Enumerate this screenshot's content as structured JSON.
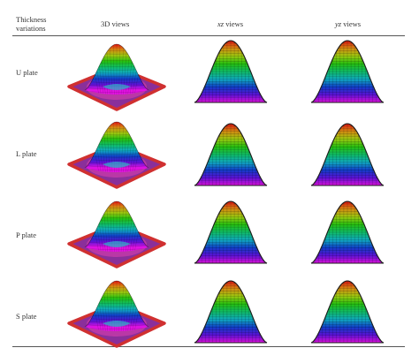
{
  "table": {
    "header": {
      "col1_line1": "Thickness",
      "col1_line2": "variations",
      "col2": "3D views",
      "col3_axis": "xz",
      "col3_word": "views",
      "col4_axis": "yz",
      "col4_word": "views"
    },
    "rows": [
      {
        "label": "U plate"
      },
      {
        "label": "L plate"
      },
      {
        "label": "P plate"
      },
      {
        "label": "S plate"
      }
    ]
  },
  "colors": {
    "rule": "#555555",
    "base_plate": "#d03030",
    "curve": "#1a1a1a"
  }
}
